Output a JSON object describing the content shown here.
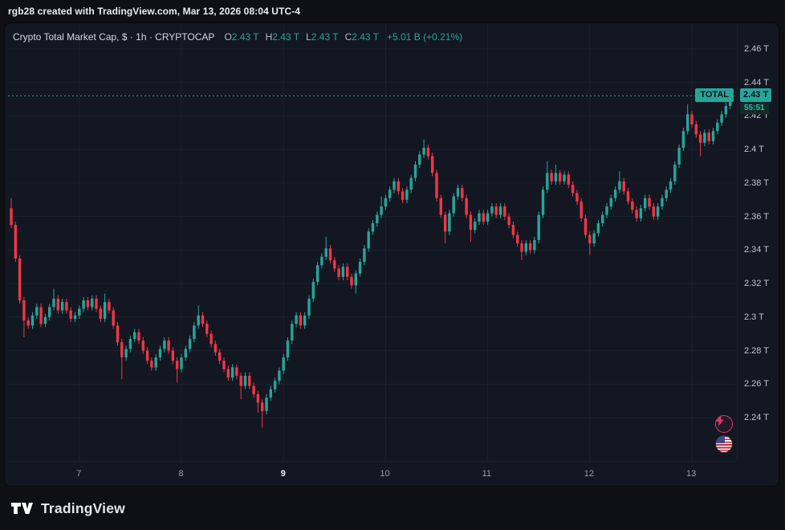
{
  "topbar": {
    "text": "rgb28 created with TradingView.com, Mar 13, 2026 08:04 UTC-4"
  },
  "legend": {
    "title": "Crypto Total Market Cap, $ · 1h · CRYPTOCAP",
    "labels": {
      "o": "O",
      "h": "H",
      "l": "L",
      "c": "C"
    },
    "values": {
      "o": "2.43 T",
      "h": "2.43 T",
      "l": "2.43 T",
      "c": "2.43 T"
    },
    "change": "+5.01 B (+0.21%)"
  },
  "footer": {
    "brand": "TradingView"
  },
  "icons": {
    "lightning": "lightning-icon",
    "flag": "us-flag-icon"
  },
  "colors": {
    "up": "#26a69a",
    "down": "#f23645",
    "accent": "#26a69a",
    "panel_bg": "#131722",
    "page_bg": "#0f1014",
    "grid": "#1c2130"
  },
  "chart_data": {
    "type": "candlestick",
    "title": "Crypto Total Market Cap",
    "symbol": "CRYPTOCAP",
    "interval": "1h",
    "series_label": "TOTAL",
    "last_price": 2.432,
    "last_price_label": "2.43 T",
    "countdown": "55:51",
    "up_color": "#26a69a",
    "down_color": "#f23645",
    "axis": {
      "price_min": 2.2142,
      "price_max": 2.4753,
      "unit": "T (trillions USD)"
    },
    "price_ticks": [
      {
        "label": "2.46 T",
        "value": 2.46
      },
      {
        "label": "2.44 T",
        "value": 2.44
      },
      {
        "label": "2.42 T",
        "value": 2.42
      },
      {
        "label": "2.4 T",
        "value": 2.4
      },
      {
        "label": "2.38 T",
        "value": 2.38
      },
      {
        "label": "2.36 T",
        "value": 2.36
      },
      {
        "label": "2.34 T",
        "value": 2.34
      },
      {
        "label": "2.32 T",
        "value": 2.32
      },
      {
        "label": "2.3 T",
        "value": 2.3
      },
      {
        "label": "2.28 T",
        "value": 2.28
      },
      {
        "label": "2.26 T",
        "value": 2.26
      },
      {
        "label": "2.24 T",
        "value": 2.24
      }
    ],
    "day_ticks": [
      {
        "label": "7",
        "index": 16,
        "strong": false
      },
      {
        "label": "8",
        "index": 40,
        "strong": false
      },
      {
        "label": "9",
        "index": 64,
        "strong": true
      },
      {
        "label": "10",
        "index": 88,
        "strong": false
      },
      {
        "label": "11",
        "index": 112,
        "strong": false
      },
      {
        "label": "12",
        "index": 136,
        "strong": false
      },
      {
        "label": "13",
        "index": 160,
        "strong": false
      }
    ],
    "open_start": 2.365,
    "default_wick": 0.002,
    "closes": [
      2.355,
      2.335,
      2.31,
      2.298,
      2.295,
      2.301,
      2.306,
      2.296,
      2.3,
      2.306,
      2.311,
      2.304,
      2.309,
      2.304,
      2.299,
      2.301,
      2.305,
      2.31,
      2.306,
      2.311,
      2.305,
      2.299,
      2.309,
      2.304,
      2.295,
      2.285,
      2.276,
      2.281,
      2.287,
      2.291,
      2.286,
      2.28,
      2.274,
      2.27,
      2.276,
      2.281,
      2.286,
      2.28,
      2.274,
      2.269,
      2.276,
      2.281,
      2.287,
      2.295,
      2.301,
      2.296,
      2.29,
      2.284,
      2.279,
      2.274,
      2.269,
      2.264,
      2.27,
      2.265,
      2.259,
      2.265,
      2.259,
      2.254,
      2.249,
      2.244,
      2.252,
      2.257,
      2.262,
      2.268,
      2.276,
      2.286,
      2.296,
      2.301,
      2.295,
      2.301,
      2.311,
      2.321,
      2.331,
      2.336,
      2.341,
      2.334,
      2.329,
      2.324,
      2.33,
      2.324,
      2.319,
      2.326,
      2.333,
      2.341,
      2.351,
      2.356,
      2.361,
      2.366,
      2.371,
      2.376,
      2.381,
      2.375,
      2.37,
      2.376,
      2.383,
      2.391,
      2.397,
      2.401,
      2.396,
      2.386,
      2.371,
      2.361,
      2.351,
      2.362,
      2.372,
      2.377,
      2.371,
      2.361,
      2.352,
      2.357,
      2.362,
      2.357,
      2.362,
      2.366,
      2.361,
      2.366,
      2.36,
      2.355,
      2.349,
      2.344,
      2.339,
      2.344,
      2.34,
      2.346,
      2.361,
      2.376,
      2.386,
      2.381,
      2.386,
      2.381,
      2.385,
      2.379,
      2.374,
      2.369,
      2.359,
      2.349,
      2.344,
      2.35,
      2.356,
      2.361,
      2.366,
      2.371,
      2.376,
      2.381,
      2.375,
      2.369,
      2.364,
      2.359,
      2.365,
      2.371,
      2.366,
      2.36,
      2.366,
      2.371,
      2.376,
      2.381,
      2.391,
      2.401,
      2.411,
      2.421,
      2.415,
      2.409,
      2.404,
      2.41,
      2.405,
      2.411,
      2.416,
      2.421,
      2.426,
      2.432
    ],
    "high_overrides": {
      "0": 2.371,
      "10": 2.317,
      "22": 2.314,
      "44": 2.307,
      "74": 2.348,
      "87": 2.372,
      "97": 2.406,
      "98": 2.403,
      "126": 2.393,
      "128": 2.391,
      "143": 2.387,
      "159": 2.427,
      "169": 2.434
    },
    "low_overrides": {
      "3": 2.288,
      "26": 2.263,
      "39": 2.261,
      "54": 2.251,
      "58": 2.243,
      "59": 2.234,
      "81": 2.314,
      "102": 2.344,
      "108": 2.345,
      "120": 2.334,
      "136": 2.337,
      "162": 2.396
    }
  }
}
